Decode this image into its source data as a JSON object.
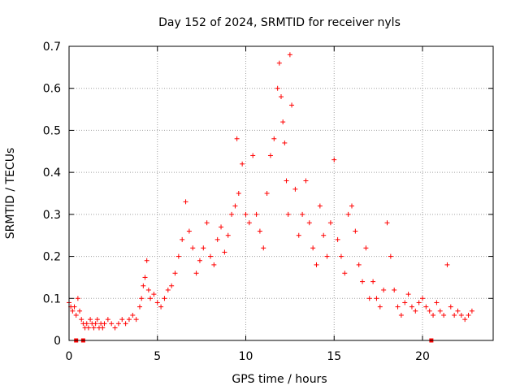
{
  "chart_data": {
    "type": "scatter",
    "title": "Day 152 of 2024, SRMTID for receiver nyls",
    "xlabel": "GPS time / hours",
    "ylabel": "SRMTID / TECUs",
    "xlim": [
      0,
      24
    ],
    "ylim": [
      0,
      0.7
    ],
    "grid": true,
    "marker": "+",
    "color": "#ff0000",
    "x_ticks": [
      0,
      5,
      10,
      15,
      20
    ],
    "x_tick_labels": [
      "0",
      "5",
      "10",
      "15",
      "20"
    ],
    "y_ticks": [
      0,
      0.1,
      0.2,
      0.3,
      0.4,
      0.5,
      0.6,
      0.7
    ],
    "y_tick_labels": [
      "0",
      "0.1",
      "0.2",
      "0.3",
      "0.4",
      "0.5",
      "0.6",
      "0.7"
    ],
    "series": [
      {
        "name": "SRMTID",
        "x": [
          0.0,
          0.1,
          0.2,
          0.3,
          0.4,
          0.5,
          0.6,
          0.7,
          0.8,
          0.9,
          1.0,
          1.1,
          1.2,
          1.3,
          1.4,
          1.5,
          1.6,
          1.7,
          1.8,
          1.9,
          2.0,
          2.2,
          2.4,
          2.6,
          2.8,
          3.0,
          3.2,
          3.4,
          3.6,
          3.8,
          4.0,
          4.1,
          4.2,
          4.3,
          4.4,
          4.5,
          4.6,
          4.8,
          5.0,
          5.2,
          5.4,
          5.6,
          5.8,
          6.0,
          6.2,
          6.4,
          6.6,
          6.8,
          7.0,
          7.2,
          7.4,
          7.6,
          7.8,
          8.0,
          8.2,
          8.4,
          8.6,
          8.8,
          9.0,
          9.2,
          9.4,
          9.5,
          9.6,
          9.8,
          10.0,
          10.2,
          10.4,
          10.6,
          10.8,
          11.0,
          11.2,
          11.4,
          11.6,
          11.8,
          11.9,
          12.0,
          12.1,
          12.2,
          12.3,
          12.4,
          12.5,
          12.6,
          12.8,
          13.0,
          13.2,
          13.4,
          13.6,
          13.8,
          14.0,
          14.2,
          14.4,
          14.6,
          14.8,
          15.0,
          15.2,
          15.4,
          15.6,
          15.8,
          16.0,
          16.2,
          16.4,
          16.6,
          16.8,
          17.0,
          17.2,
          17.4,
          17.6,
          17.8,
          18.0,
          18.2,
          18.4,
          18.6,
          18.8,
          19.0,
          19.2,
          19.4,
          19.6,
          19.8,
          20.0,
          20.2,
          20.4,
          20.6,
          20.8,
          21.0,
          21.2,
          21.4,
          21.6,
          21.8,
          22.0,
          22.2,
          22.4,
          22.6,
          22.8
        ],
        "y": [
          0.09,
          0.08,
          0.07,
          0.08,
          0.06,
          0.1,
          0.07,
          0.05,
          0.04,
          0.03,
          0.04,
          0.03,
          0.05,
          0.04,
          0.03,
          0.04,
          0.05,
          0.03,
          0.04,
          0.03,
          0.04,
          0.05,
          0.04,
          0.03,
          0.04,
          0.05,
          0.04,
          0.05,
          0.06,
          0.05,
          0.08,
          0.1,
          0.13,
          0.15,
          0.19,
          0.12,
          0.1,
          0.11,
          0.09,
          0.08,
          0.1,
          0.12,
          0.13,
          0.16,
          0.2,
          0.24,
          0.33,
          0.26,
          0.22,
          0.16,
          0.19,
          0.22,
          0.28,
          0.2,
          0.18,
          0.24,
          0.27,
          0.21,
          0.25,
          0.3,
          0.32,
          0.48,
          0.35,
          0.42,
          0.3,
          0.28,
          0.44,
          0.3,
          0.26,
          0.22,
          0.35,
          0.44,
          0.48,
          0.6,
          0.66,
          0.58,
          0.52,
          0.47,
          0.38,
          0.3,
          0.68,
          0.56,
          0.36,
          0.25,
          0.3,
          0.38,
          0.28,
          0.22,
          0.18,
          0.32,
          0.25,
          0.2,
          0.28,
          0.43,
          0.24,
          0.2,
          0.16,
          0.3,
          0.32,
          0.26,
          0.18,
          0.14,
          0.22,
          0.1,
          0.14,
          0.1,
          0.08,
          0.12,
          0.28,
          0.2,
          0.12,
          0.08,
          0.06,
          0.09,
          0.11,
          0.08,
          0.07,
          0.09,
          0.1,
          0.08,
          0.07,
          0.06,
          0.09,
          0.07,
          0.06,
          0.18,
          0.08,
          0.06,
          0.07,
          0.06,
          0.05,
          0.06,
          0.07
        ]
      }
    ],
    "baseline_markers": [
      0.4,
      0.8,
      20.5
    ]
  }
}
